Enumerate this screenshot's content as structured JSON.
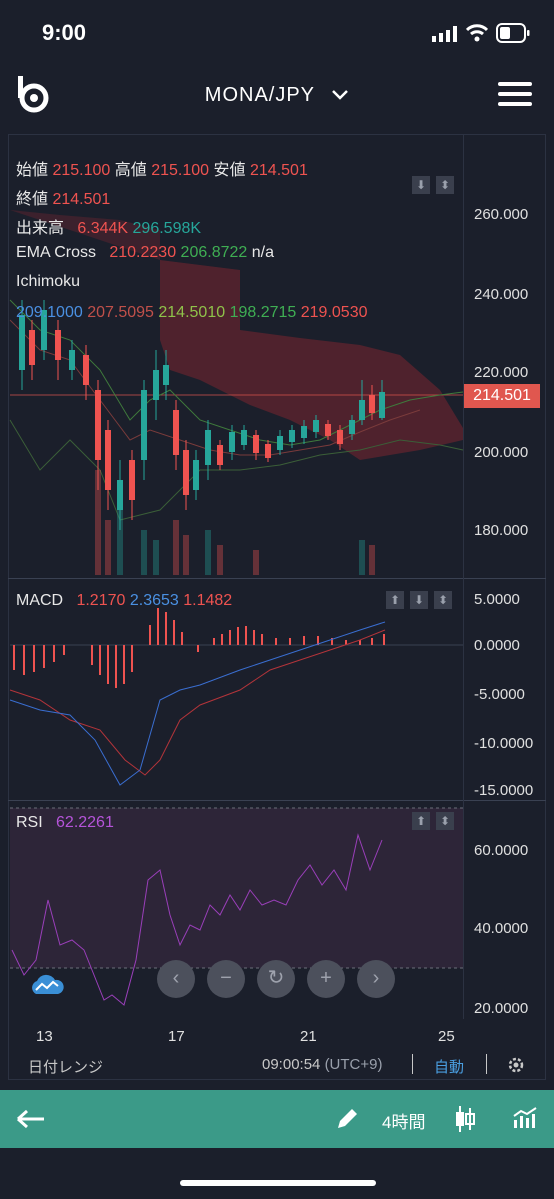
{
  "status": {
    "time": "9:00"
  },
  "header": {
    "pair": "MONA/JPY",
    "menu_icon": "hamburger-menu-icon",
    "logo_icon": "bitbank-logo"
  },
  "legend": {
    "ohlc": [
      {
        "label": "始値",
        "value": "215.100"
      },
      {
        "label": "高値",
        "value": "215.100"
      },
      {
        "label": "安値",
        "value": "214.501"
      }
    ],
    "close": {
      "label": "終値",
      "value": "214.501"
    },
    "volume": {
      "label": "出来高",
      "v1": "6.344K",
      "v2": "296.598K"
    },
    "ema": {
      "label": "EMA Cross",
      "v1": "210.2230",
      "v2": "206.8722",
      "v3": "n/a"
    },
    "ichimoku": {
      "label": "Ichimoku",
      "v1": "209.1000",
      "v2": "207.5095",
      "v3": "214.5010",
      "v4": "198.2715",
      "v5": "219.0530"
    }
  },
  "price_axis": [
    "260.000",
    "240.000",
    "220.000",
    "200.000",
    "180.000"
  ],
  "current_price": "214.501",
  "macd": {
    "label": "MACD",
    "v1": "1.2170",
    "v2": "2.3653",
    "v3": "1.1482",
    "axis": [
      "5.0000",
      "0.0000",
      "-5.0000",
      "-10.0000",
      "-15.0000"
    ]
  },
  "rsi": {
    "label": "RSI",
    "value": "62.2261",
    "axis": [
      "60.0000",
      "40.0000",
      "20.0000"
    ]
  },
  "x_axis": [
    "13",
    "17",
    "21",
    "25"
  ],
  "footer": {
    "range": "日付レンジ",
    "clock": "09:00:54",
    "tz": "(UTC+9)",
    "auto": "自動"
  },
  "controls": [
    "‹",
    "−",
    "↻",
    "+",
    "›"
  ],
  "bottom_nav": {
    "interval": "4時間"
  },
  "colors": {
    "up": "#26a69a",
    "down": "#ef5350",
    "bg": "#1b1f2b",
    "nav": "#3b9a88"
  }
}
